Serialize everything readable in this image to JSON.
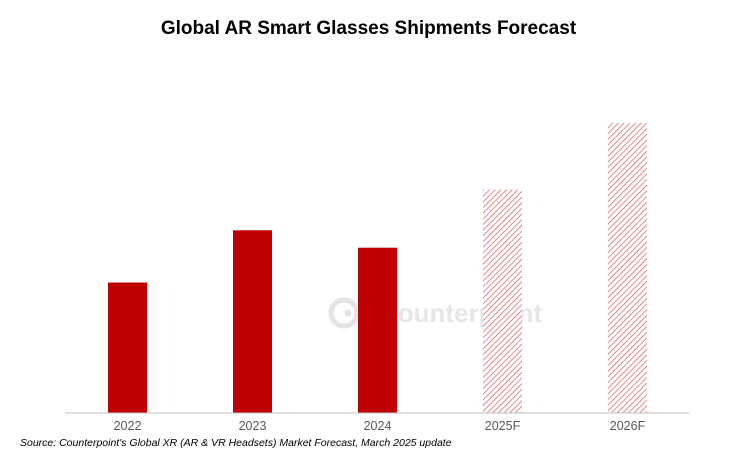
{
  "title": "Global AR Smart Glasses Shipments Forecast",
  "source": "Source: Counterpoint's Global XR (AR & VR Headsets) Market Forecast, March 2025 update",
  "watermark": "Counterpoint",
  "colors": {
    "bar": "#c00000",
    "forecast_hatch": "#c00000",
    "axis": "#bfbfbf",
    "tick_text": "#595959",
    "watermark": "#e6e6e6"
  },
  "chart_data": {
    "type": "bar",
    "title": "Global AR Smart Glasses Shipments Forecast",
    "categories": [
      "2022",
      "2023",
      "2024",
      "2025F",
      "2026F"
    ],
    "values": [
      45,
      63,
      57,
      77,
      100
    ],
    "forecast": [
      false,
      false,
      false,
      true,
      true
    ],
    "ylim": [
      0,
      100
    ],
    "y_axis_shown": false,
    "grid": false,
    "legend": "none",
    "xlabel": "",
    "ylabel": ""
  }
}
